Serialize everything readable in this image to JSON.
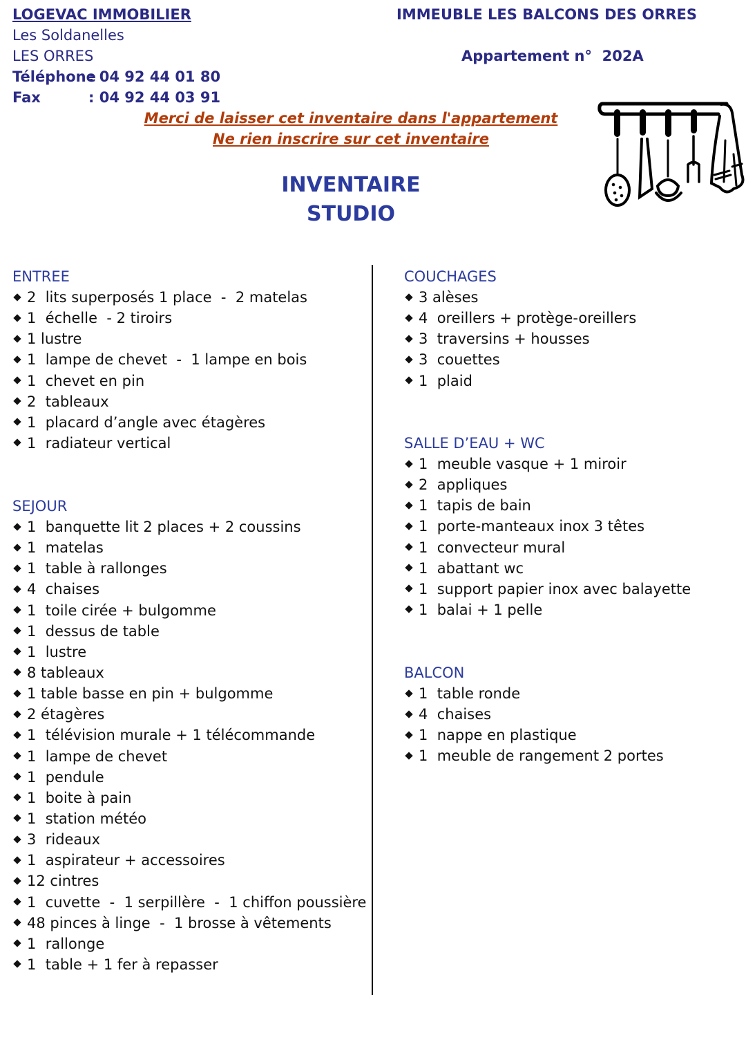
{
  "header": {
    "company": "LOGEVAC IMMOBILIER",
    "address1": "Les Soldanelles",
    "address2": "LES ORRES",
    "phone_label": "Téléphone",
    "phone": ": 04 92 44 01 80",
    "fax_label": "Fax",
    "fax": ": 04 92 44 03 91",
    "building": "IMMEUBLE LES BALCONS DES ORRES",
    "apartment": "Appartement n°  202A",
    "notice1": "Merci de laisser cet inventaire dans l'appartement",
    "notice2": "Ne rien inscrire sur cet inventaire"
  },
  "title": {
    "line1": "INVENTAIRE",
    "line2": "STUDIO"
  },
  "sections": [
    {
      "name": "ENTREE",
      "items": [
        "2  lits superposés 1 place  -  2 matelas",
        "1  échelle  - 2 tiroirs",
        "1 lustre",
        "1  lampe de chevet  -  1 lampe en bois",
        "1  chevet en pin",
        "2  tableaux",
        "1  placard d’angle avec étagères",
        "1  radiateur vertical"
      ]
    },
    {
      "name": "SEJOUR",
      "items": [
        "1  banquette lit 2 places + 2 coussins",
        "1  matelas",
        "1  table à rallonges",
        "4  chaises",
        "1  toile cirée + bulgomme",
        "1  dessus de table",
        "1  lustre",
        "8 tableaux",
        "1 table basse en pin + bulgomme",
        "2 étagères",
        "1  télévision murale + 1 télécommande",
        "1  lampe de chevet",
        "1  pendule",
        "1  boite à pain",
        "1  station météo",
        "3  rideaux",
        "1  aspirateur + accessoires",
        "12 cintres",
        "1  cuvette  -  1 serpillère  -  1 chiffon poussière",
        "48 pinces à linge  -  1 brosse à vêtements",
        "1  rallonge",
        "1  table + 1 fer à repasser"
      ]
    },
    {
      "name": "COUCHAGES",
      "items": [
        "3 alèses",
        "4  oreillers + protège-oreillers",
        "3  traversins + housses",
        "3  couettes",
        "1  plaid"
      ]
    },
    {
      "name": "SALLE D’EAU  +  WC",
      "items": [
        "1  meuble vasque + 1 miroir",
        "2  appliques",
        "1  tapis de bain",
        "1  porte-manteaux inox 3 têtes",
        "1  convecteur mural",
        "1  abattant wc",
        "1  support papier inox avec balayette",
        "1  balai + 1 pelle"
      ]
    },
    {
      "name": "BALCON",
      "items": [
        "1  table ronde",
        "4  chaises",
        "1  nappe en plastique",
        "1  meuble de rangement 2 portes"
      ]
    }
  ],
  "icons": {
    "illustration": "kitchen-utensils-icon"
  },
  "colors": {
    "header_text": "#2a2a85",
    "notice": "#b23c0a",
    "section_heading": "#2b3b9e"
  }
}
